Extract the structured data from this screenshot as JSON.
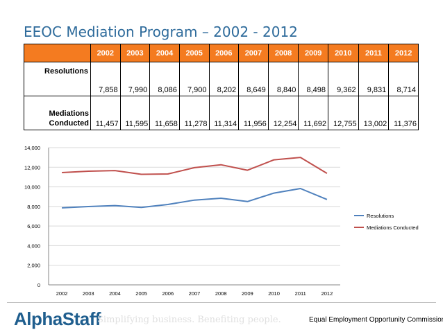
{
  "title": "EEOC Mediation Program – 2002 - 2012",
  "table": {
    "years": [
      "2002",
      "2003",
      "2004",
      "2005",
      "2006",
      "2007",
      "2008",
      "2009",
      "2010",
      "2011",
      "2012"
    ],
    "rows": [
      {
        "label": "Resolutions",
        "values": [
          "7,858",
          "7,990",
          "8,086",
          "7,900",
          "8,202",
          "8,649",
          "8,840",
          "8,498",
          "9,362",
          "9,831",
          "8,714"
        ]
      },
      {
        "label": "Mediations Conducted",
        "values": [
          "11,457",
          "11,595",
          "11,658",
          "11,278",
          "11,314",
          "11,956",
          "12,254",
          "11,692",
          "12,755",
          "13,002",
          "11,376"
        ]
      }
    ]
  },
  "chart_data": {
    "type": "line",
    "x": [
      "2002",
      "2003",
      "2004",
      "2005",
      "2006",
      "2007",
      "2008",
      "2009",
      "2010",
      "2011",
      "2012"
    ],
    "series": [
      {
        "name": "Resolutions",
        "color": "#4f81bd",
        "values": [
          7858,
          7990,
          8086,
          7900,
          8202,
          8649,
          8840,
          8498,
          9362,
          9831,
          8714
        ]
      },
      {
        "name": "Mediations Conducted",
        "color": "#c0504d",
        "values": [
          11457,
          11595,
          11658,
          11278,
          11314,
          11956,
          12254,
          11692,
          12755,
          13002,
          11376
        ]
      }
    ],
    "ylim": [
      0,
      14000
    ],
    "yticks": [
      0,
      2000,
      4000,
      6000,
      8000,
      10000,
      12000,
      14000
    ],
    "ytick_labels": [
      "0",
      "2,000",
      "4,000",
      "6,000",
      "8,000",
      "10,000",
      "12,000",
      "14,000"
    ],
    "legend": "right",
    "grid": true,
    "title": "",
    "xlabel": "",
    "ylabel": ""
  },
  "footer": {
    "logo_part1": "Alpha",
    "logo_part2": "Staff",
    "tagline": "Simplifying business. Benefiting people.",
    "org": "Equal Employment Opportunity Commission"
  },
  "colors": {
    "title": "#2e6b9b",
    "header": "#f47b20",
    "logo": "#1f5e8e"
  }
}
